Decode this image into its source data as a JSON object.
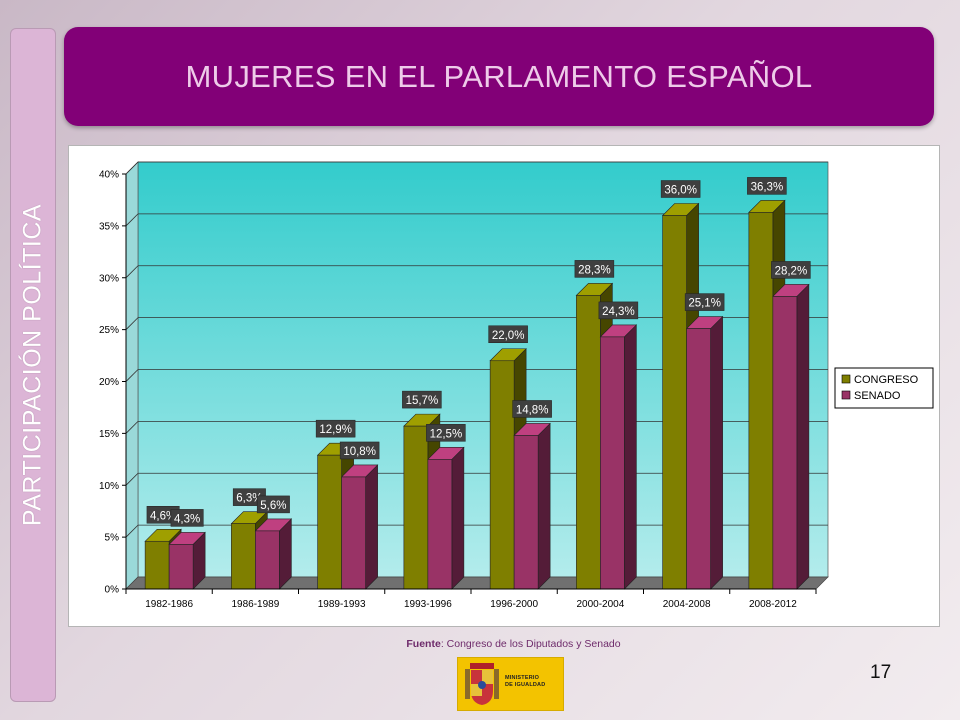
{
  "slide": {
    "title": "MUJERES EN EL PARLAMENTO ESPAÑOL",
    "side_label": "PARTICIPACIÓN POLÍTICA",
    "source_label": "Fuente",
    "source_text": ": Congreso de los Diputados y Senado",
    "logo_text_line1": "MINISTERIO",
    "logo_text_line2": "DE IGUALDAD",
    "page_number": "17"
  },
  "colors": {
    "banner": "#820077",
    "congreso": "#7f7f00",
    "senado": "#993366",
    "plot_background_top": "#33cccc",
    "plot_background_bottom": "#b3ecec"
  },
  "chart_data": {
    "type": "bar",
    "categories": [
      "1982-1986",
      "1986-1989",
      "1989-1993",
      "1993-1996",
      "1996-2000",
      "2000-2004",
      "2004-2008",
      "2008-2012"
    ],
    "series": [
      {
        "name": "CONGRESO",
        "values": [
          4.6,
          6.3,
          12.9,
          15.7,
          22.0,
          28.3,
          36.0,
          36.3
        ],
        "labels": [
          "4,6%",
          "6,3%",
          "12,9%",
          "15,7%",
          "22,0%",
          "28,3%",
          "36,0%",
          "36,3%"
        ]
      },
      {
        "name": "SENADO",
        "values": [
          4.3,
          5.6,
          10.8,
          12.5,
          14.8,
          24.3,
          25.1,
          28.2
        ],
        "labels": [
          "4,3%",
          "5,6%",
          "10,8%",
          "12,5%",
          "14,8%",
          "24,3%",
          "25,1%",
          "28,2%"
        ]
      }
    ],
    "yticks": [
      "0%",
      "5%",
      "10%",
      "15%",
      "20%",
      "25%",
      "30%",
      "35%",
      "40%"
    ],
    "ylim": [
      0,
      40
    ],
    "grid": true,
    "legend_position": "right",
    "style": "3d"
  }
}
